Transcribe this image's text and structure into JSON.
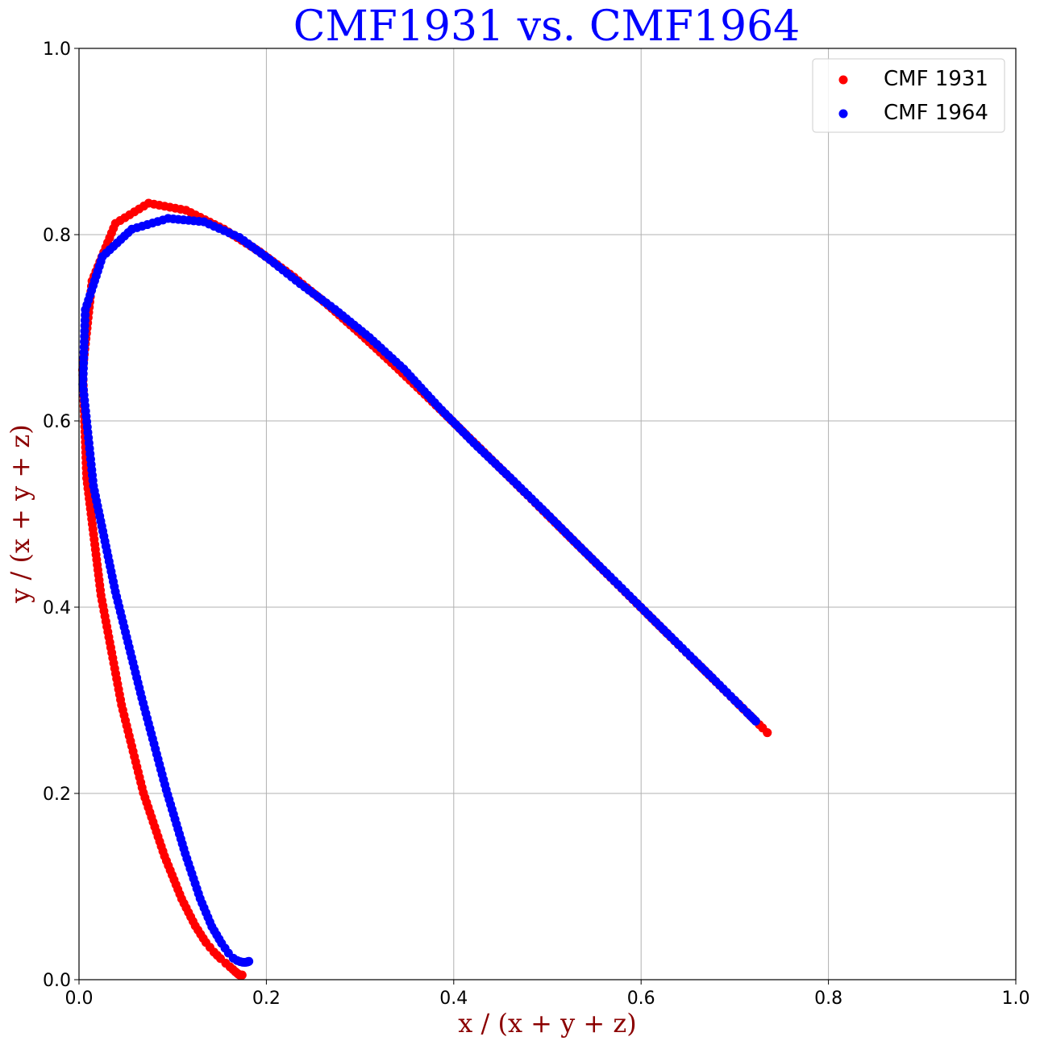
{
  "chart_data": {
    "type": "scatter",
    "title": "CMF1931 vs. CMF1964",
    "xlabel": "x / (x + y + z)",
    "ylabel": "y / (x + y + z)",
    "xlim": [
      0.0,
      1.0
    ],
    "ylim": [
      0.0,
      1.0
    ],
    "xticks": [
      "0.0",
      "0.2",
      "0.4",
      "0.6",
      "0.8",
      "1.0"
    ],
    "yticks": [
      "0.0",
      "0.2",
      "0.4",
      "0.6",
      "0.8",
      "1.0"
    ],
    "grid": true,
    "legend_position": "top-right",
    "colors": {
      "title": "#0000ff",
      "axis_label": "#8b0000",
      "grid": "#b0b0b0"
    },
    "series": [
      {
        "name": "CMF 1931",
        "color": "#ff0000",
        "points": [
          [
            0.1741,
            0.005
          ],
          [
            0.174,
            0.005
          ],
          [
            0.1738,
            0.0049
          ],
          [
            0.1736,
            0.0049
          ],
          [
            0.1733,
            0.0048
          ],
          [
            0.173,
            0.0048
          ],
          [
            0.1726,
            0.0048
          ],
          [
            0.1721,
            0.0048
          ],
          [
            0.1714,
            0.0051
          ],
          [
            0.1703,
            0.0058
          ],
          [
            0.1689,
            0.0069
          ],
          [
            0.1669,
            0.0086
          ],
          [
            0.1644,
            0.0109
          ],
          [
            0.1611,
            0.0138
          ],
          [
            0.1566,
            0.0177
          ],
          [
            0.151,
            0.0227
          ],
          [
            0.144,
            0.0297
          ],
          [
            0.1355,
            0.0399
          ],
          [
            0.1241,
            0.0578
          ],
          [
            0.1096,
            0.0868
          ],
          [
            0.0913,
            0.1327
          ],
          [
            0.0687,
            0.2007
          ],
          [
            0.0454,
            0.295
          ],
          [
            0.0235,
            0.4127
          ],
          [
            0.0082,
            0.5384
          ],
          [
            0.0039,
            0.6548
          ],
          [
            0.0139,
            0.7502
          ],
          [
            0.0389,
            0.812
          ],
          [
            0.0743,
            0.8338
          ],
          [
            0.1142,
            0.8262
          ],
          [
            0.1547,
            0.8059
          ],
          [
            0.1929,
            0.7816
          ],
          [
            0.2296,
            0.7543
          ],
          [
            0.2658,
            0.7243
          ],
          [
            0.3016,
            0.6923
          ],
          [
            0.3373,
            0.6589
          ],
          [
            0.3731,
            0.6245
          ],
          [
            0.4087,
            0.5896
          ],
          [
            0.4441,
            0.5547
          ],
          [
            0.4788,
            0.5202
          ],
          [
            0.5125,
            0.4866
          ],
          [
            0.5448,
            0.4544
          ],
          [
            0.5752,
            0.4242
          ],
          [
            0.6029,
            0.3965
          ],
          [
            0.627,
            0.3725
          ],
          [
            0.6482,
            0.3514
          ],
          [
            0.6658,
            0.334
          ],
          [
            0.6801,
            0.3197
          ],
          [
            0.6915,
            0.3083
          ],
          [
            0.7006,
            0.2993
          ],
          [
            0.714,
            0.2859
          ],
          [
            0.7219,
            0.2781
          ],
          [
            0.7262,
            0.2738
          ],
          [
            0.7297,
            0.2703
          ],
          [
            0.7347,
            0.2653
          ],
          [
            0.7347,
            0.2653
          ]
        ]
      },
      {
        "name": "CMF 1964",
        "color": "#0000ff",
        "points": [
          [
            0.1813,
            0.0197
          ],
          [
            0.1809,
            0.0195
          ],
          [
            0.1803,
            0.0194
          ],
          [
            0.1795,
            0.019
          ],
          [
            0.1784,
            0.0187
          ],
          [
            0.1768,
            0.0186
          ],
          [
            0.1748,
            0.0187
          ],
          [
            0.1721,
            0.0194
          ],
          [
            0.1688,
            0.0206
          ],
          [
            0.1647,
            0.0231
          ],
          [
            0.1595,
            0.0286
          ],
          [
            0.1522,
            0.0391
          ],
          [
            0.1418,
            0.0569
          ],
          [
            0.1293,
            0.0871
          ],
          [
            0.1134,
            0.1354
          ],
          [
            0.0931,
            0.2039
          ],
          [
            0.067,
            0.3025
          ],
          [
            0.0388,
            0.4167
          ],
          [
            0.0154,
            0.5302
          ],
          [
            0.0041,
            0.6393
          ],
          [
            0.0068,
            0.7194
          ],
          [
            0.025,
            0.7764
          ],
          [
            0.0564,
            0.8058
          ],
          [
            0.0951,
            0.8174
          ],
          [
            0.1334,
            0.8138
          ],
          [
            0.1712,
            0.797
          ],
          [
            0.2038,
            0.7731
          ],
          [
            0.2361,
            0.7473
          ],
          [
            0.2732,
            0.7197
          ],
          [
            0.3101,
            0.6895
          ],
          [
            0.3467,
            0.6557
          ],
          [
            0.3834,
            0.6154
          ],
          [
            0.4215,
            0.5763
          ],
          [
            0.4603,
            0.5389
          ],
          [
            0.4984,
            0.5013
          ],
          [
            0.5356,
            0.4638
          ],
          [
            0.5713,
            0.4284
          ],
          [
            0.6041,
            0.3956
          ],
          [
            0.6322,
            0.3676
          ],
          [
            0.6563,
            0.3436
          ],
          [
            0.6759,
            0.3242
          ],
          [
            0.6916,
            0.3084
          ],
          [
            0.7038,
            0.2962
          ],
          [
            0.7131,
            0.2869
          ],
          [
            0.7198,
            0.2802
          ],
          [
            0.7224,
            0.2776
          ]
        ]
      }
    ]
  }
}
